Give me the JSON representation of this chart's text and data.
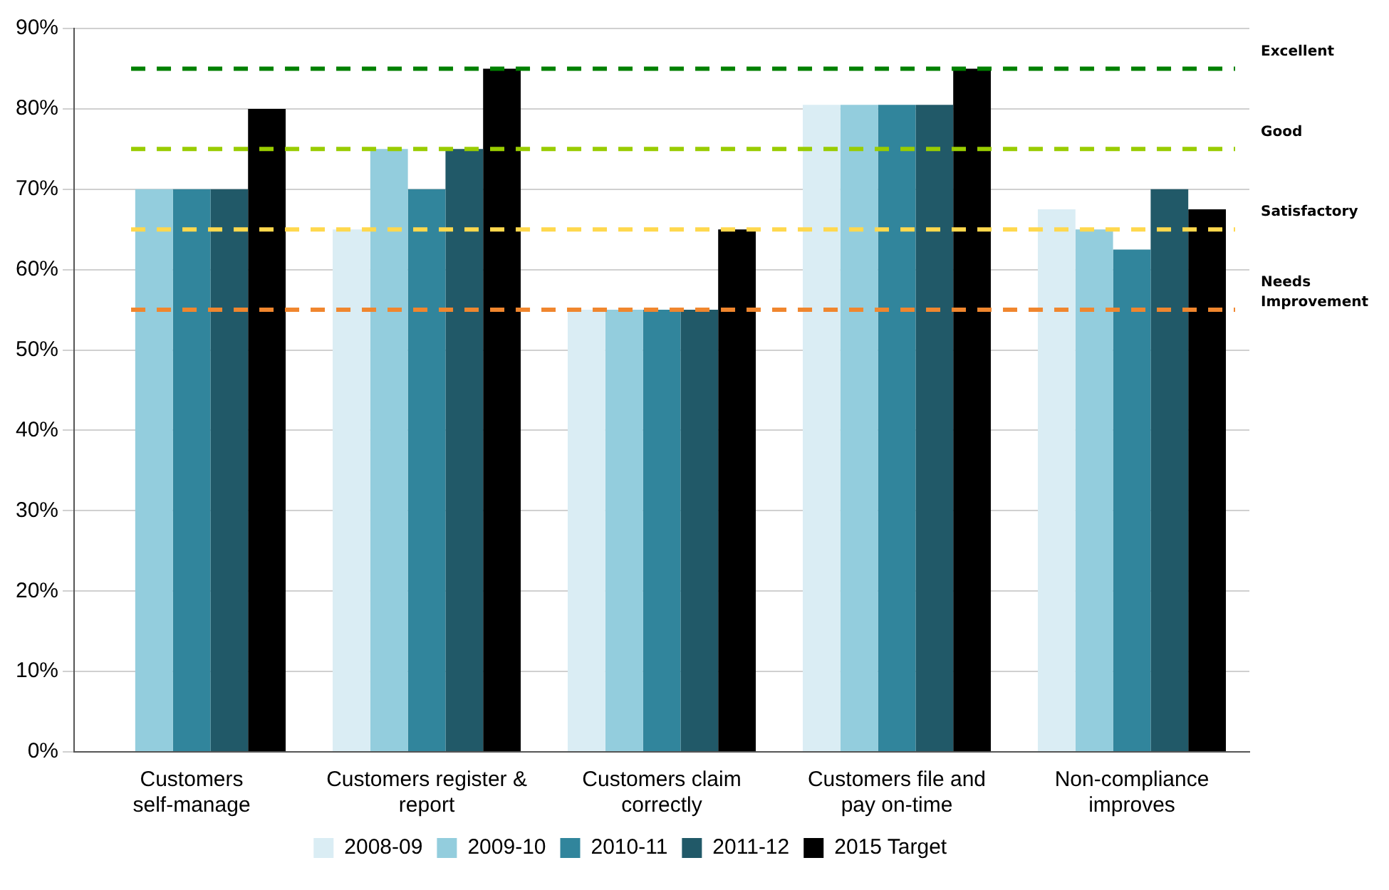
{
  "chart_data": {
    "type": "bar",
    "categories": [
      "Customers self-manage",
      "Customers register & report",
      "Customers claim correctly",
      "Customers file and pay on-time",
      "Non-compliance improves"
    ],
    "series": [
      {
        "name": "2008-09",
        "color": "#daedf4",
        "values": [
          null,
          65,
          55,
          80.5,
          67.5
        ]
      },
      {
        "name": "2009-10",
        "color": "#93cddd",
        "values": [
          70,
          75,
          55,
          80.5,
          65
        ]
      },
      {
        "name": "2010-11",
        "color": "#31859c",
        "values": [
          70,
          70,
          55,
          80.5,
          62.5
        ]
      },
      {
        "name": "2011-12",
        "color": "#215968",
        "values": [
          70,
          75,
          55,
          80.5,
          70
        ]
      },
      {
        "name": "2015 Target",
        "color": "#000000",
        "values": [
          80,
          85,
          65,
          85,
          67.5
        ]
      }
    ],
    "ylim": [
      0,
      90
    ],
    "yticks": [
      {
        "value": 0,
        "label": "0%"
      },
      {
        "value": 10,
        "label": "10%"
      },
      {
        "value": 20,
        "label": "20%"
      },
      {
        "value": 30,
        "label": "30%"
      },
      {
        "value": 40,
        "label": "40%"
      },
      {
        "value": 50,
        "label": "50%"
      },
      {
        "value": 60,
        "label": "60%"
      },
      {
        "value": 70,
        "label": "70%"
      },
      {
        "value": 80,
        "label": "80%"
      },
      {
        "value": 90,
        "label": "90%"
      }
    ],
    "ref_lines": [
      {
        "axis": "y",
        "value": 85,
        "label": "Excellent",
        "color": "#008000",
        "line_style": "dashed"
      },
      {
        "axis": "y",
        "value": 75,
        "label": "Good",
        "color": "#99cc00",
        "line_style": "dashed"
      },
      {
        "axis": "y",
        "value": 65,
        "label": "Satisfactory",
        "color": "#ffd84d",
        "line_style": "dashed"
      },
      {
        "axis": "y",
        "value": 55,
        "label": "Needs Improvement",
        "color": "#f0862e",
        "line_style": "dashed"
      }
    ],
    "grid": "y",
    "legend": "bottom"
  }
}
